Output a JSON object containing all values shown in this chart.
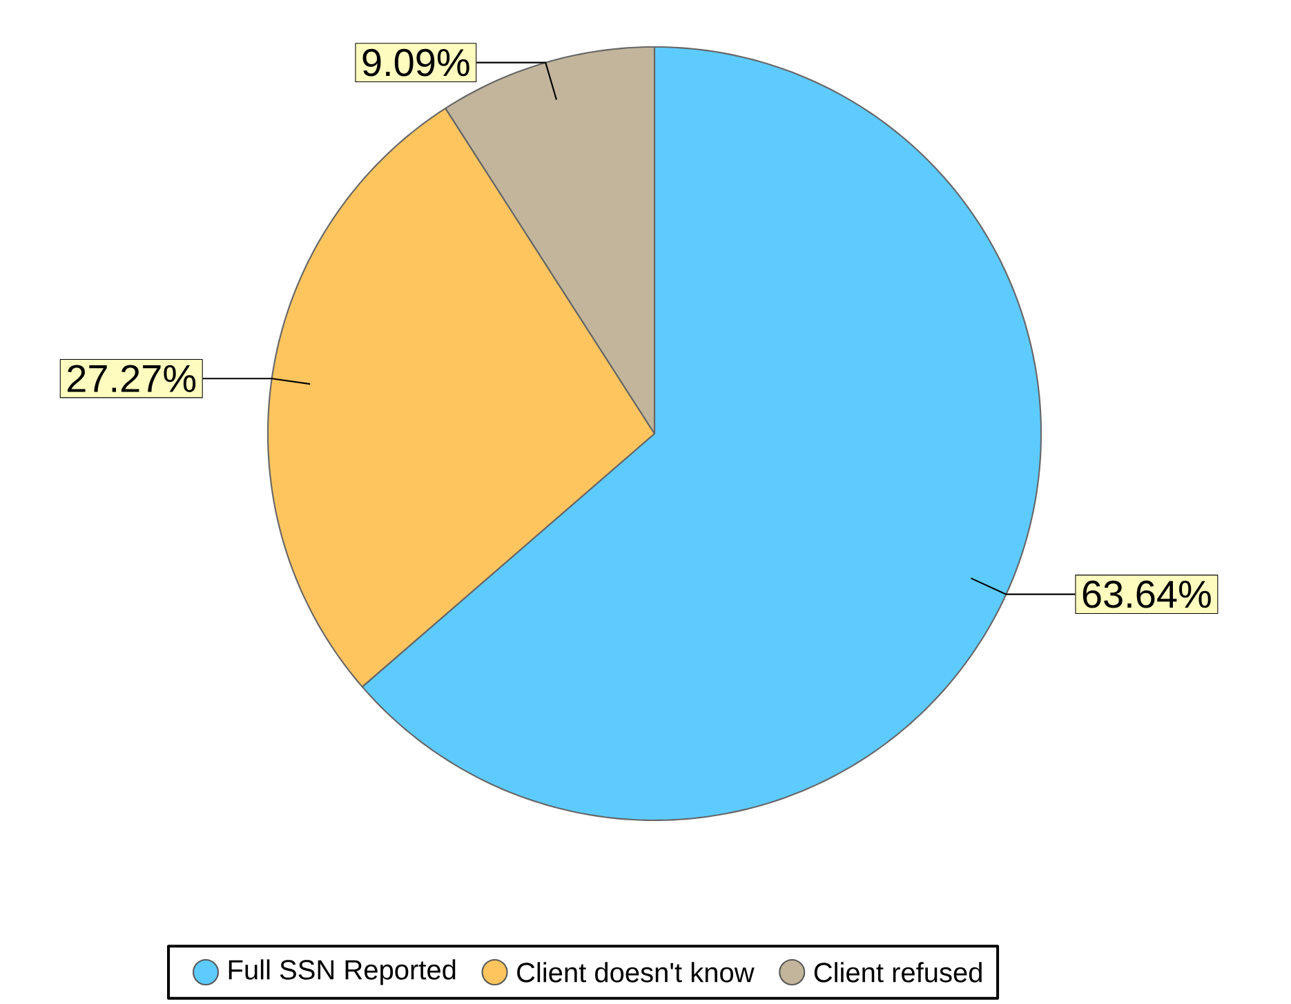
{
  "chart_data": {
    "type": "pie",
    "categories": [
      "Full SSN Reported",
      "Client doesn't know",
      "Client refused"
    ],
    "values": [
      63.64,
      27.27,
      9.09
    ],
    "colors": [
      "#5ecbff",
      "#fec55f",
      "#c2b59b"
    ],
    "value_labels": [
      "63.64%",
      "27.27%",
      "9.09%"
    ],
    "legend": "bottom"
  }
}
